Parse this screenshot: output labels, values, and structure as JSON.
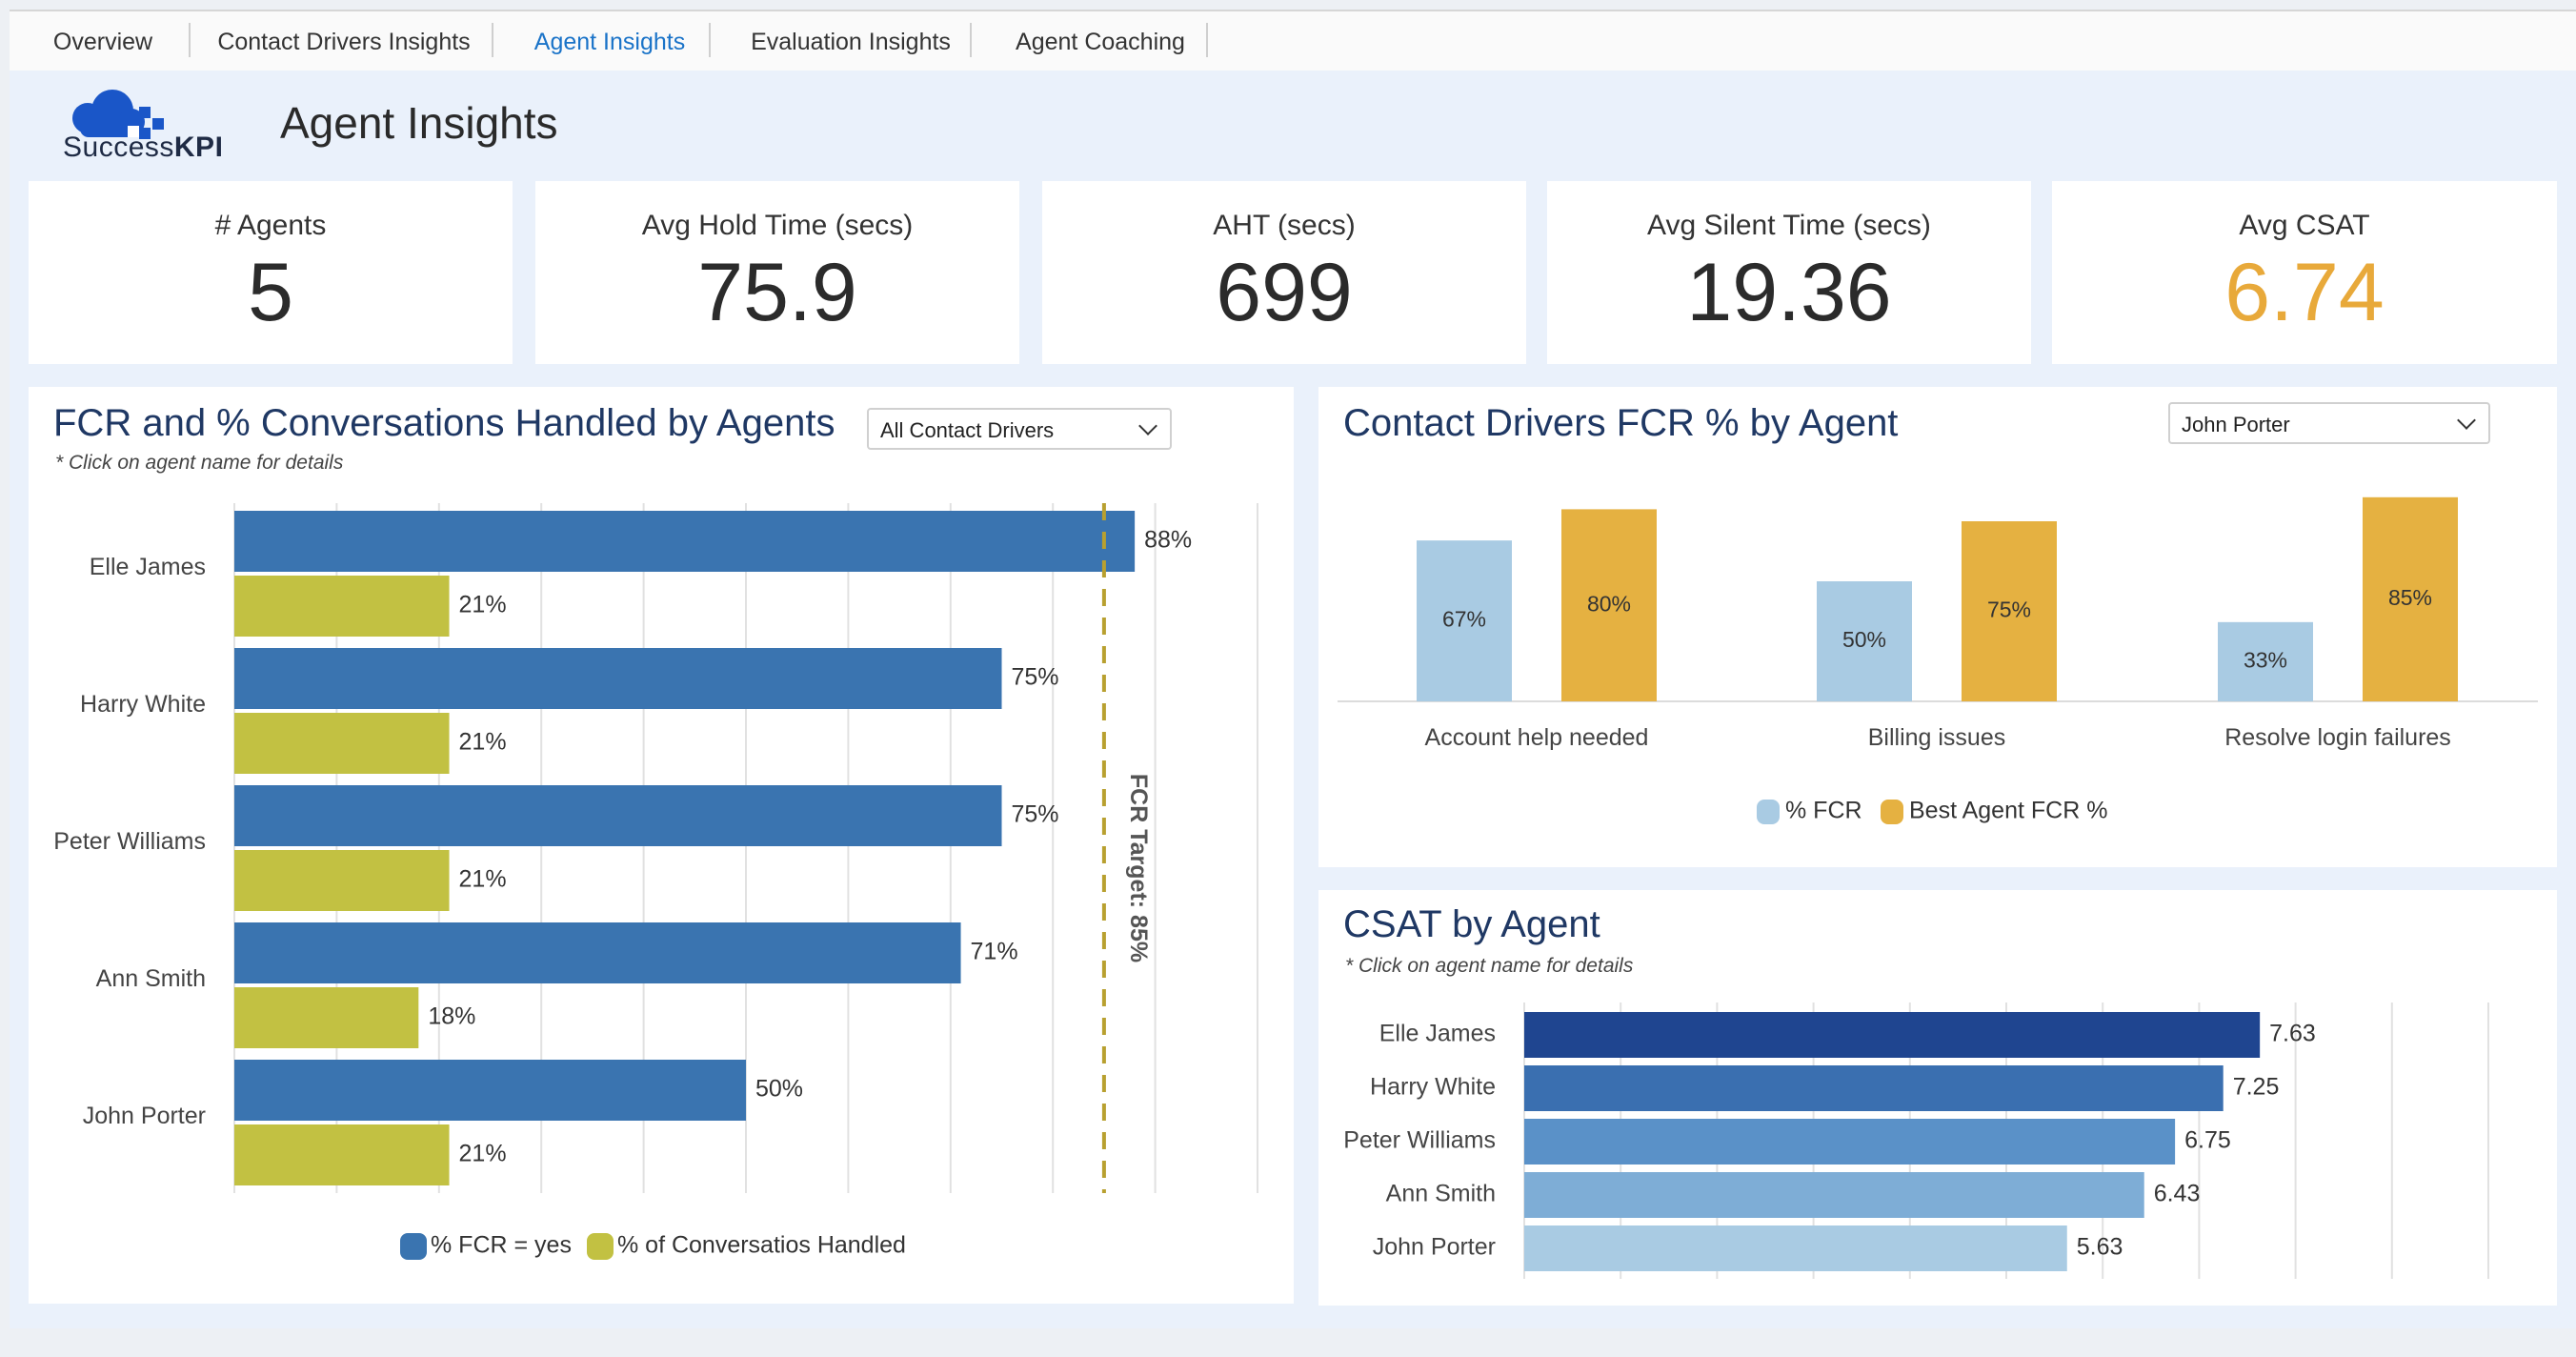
{
  "tabs": [
    {
      "label": "Overview",
      "active": false
    },
    {
      "label": "Contact Drivers Insights",
      "active": false
    },
    {
      "label": "Agent Insights",
      "active": true
    },
    {
      "label": "Evaluation Insights",
      "active": false
    },
    {
      "label": "Agent Coaching",
      "active": false
    }
  ],
  "brand": {
    "name_plain": "Success",
    "name_bold": "KPI",
    "logo_icon": "cloud-logo-icon",
    "color": "#1a56c8"
  },
  "page_title": "Agent Insights",
  "kpis": [
    {
      "label": "# Agents",
      "value": "5",
      "color": "#2b2b2b"
    },
    {
      "label": "Avg Hold Time (secs)",
      "value": "75.9",
      "color": "#2b2b2b"
    },
    {
      "label": "AHT (secs)",
      "value": "699",
      "color": "#2b2b2b"
    },
    {
      "label": "Avg Silent Time (secs)",
      "value": "19.36",
      "color": "#2b2b2b"
    },
    {
      "label": "Avg CSAT",
      "value": "6.74",
      "color": "#e8a93a"
    }
  ],
  "fcr_panel": {
    "title": "FCR and % Conversations Handled by Agents",
    "note": "* Click on agent name for details",
    "dropdown_value": "All Contact Drivers"
  },
  "drivers_panel": {
    "title": "Contact Drivers FCR % by Agent",
    "dropdown_value": "John Porter"
  },
  "csat_panel": {
    "title": "CSAT by Agent",
    "note": "* Click on agent name for details"
  },
  "colors": {
    "fcr": "#3a74b0",
    "handled": "#c2c142",
    "target": "#b8a030",
    "pct_fcr": "#a9cbe3",
    "best_fcr": "#e5b141",
    "csat": [
      "#1f4590",
      "#3a6fb0",
      "#5a91c8",
      "#7eadd6",
      "#a9cbe3"
    ]
  },
  "chart_data": [
    {
      "type": "bar",
      "orientation": "horizontal",
      "categories": [
        "Elle James",
        "Harry White",
        "Peter Williams",
        "Ann Smith",
        "John Porter"
      ],
      "series": [
        {
          "name": "% FCR = yes",
          "values": [
            88,
            75,
            75,
            71,
            50
          ],
          "labels": [
            "88%",
            "75%",
            "75%",
            "71%",
            "50%"
          ]
        },
        {
          "name": "% of Conversatios Handled",
          "values": [
            21,
            21,
            21,
            18,
            21
          ],
          "labels": [
            "21%",
            "21%",
            "21%",
            "18%",
            "21%"
          ]
        }
      ],
      "xlim": [
        0,
        100
      ],
      "reference_line": {
        "value": 85,
        "label": "FCR Target: 85%"
      },
      "grid": true,
      "legend": "bottom"
    },
    {
      "type": "bar",
      "categories": [
        "Account help needed",
        "Billing issues",
        "Resolve login failures"
      ],
      "series": [
        {
          "name": "% FCR",
          "values": [
            67,
            50,
            33
          ],
          "labels": [
            "67%",
            "50%",
            "33%"
          ]
        },
        {
          "name": "Best Agent FCR %",
          "values": [
            80,
            75,
            85
          ],
          "labels": [
            "80%",
            "75%",
            "85%"
          ]
        }
      ],
      "ylim": [
        0,
        100
      ],
      "legend": "bottom"
    },
    {
      "type": "bar",
      "orientation": "horizontal",
      "categories": [
        "Elle James",
        "Harry White",
        "Peter Williams",
        "Ann Smith",
        "John Porter"
      ],
      "values": [
        7.63,
        7.25,
        6.75,
        6.43,
        5.63
      ],
      "labels": [
        "7.63",
        "7.25",
        "6.75",
        "6.43",
        "5.63"
      ],
      "xlim": [
        0,
        10
      ],
      "grid": true
    }
  ]
}
